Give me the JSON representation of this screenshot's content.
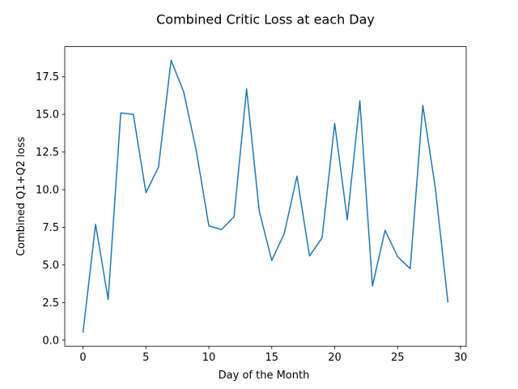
{
  "chart_data": {
    "type": "line",
    "title": "Combined Critic Loss at each Day",
    "xlabel": "Day of the Month",
    "ylabel": "Combined Q1+Q2 loss",
    "xlim": [
      -1.45,
      30.45
    ],
    "ylim": [
      -0.4,
      19.5
    ],
    "xticks": [
      0,
      5,
      10,
      15,
      20,
      25,
      30
    ],
    "xtick_labels": [
      "0",
      "5",
      "10",
      "15",
      "20",
      "25",
      "30"
    ],
    "yticks": [
      0.0,
      2.5,
      5.0,
      7.5,
      10.0,
      12.5,
      15.0,
      17.5
    ],
    "ytick_labels": [
      "0.0",
      "2.5",
      "5.0",
      "7.5",
      "10.0",
      "12.5",
      "15.0",
      "17.5"
    ],
    "grid": false,
    "line_color": "#1f77b4",
    "series": [
      {
        "x": [
          0,
          1,
          2,
          3,
          4,
          5,
          6,
          7,
          8,
          9,
          10,
          11,
          12,
          13,
          14,
          15,
          16,
          17,
          18,
          19,
          20,
          21,
          22,
          23,
          24,
          25,
          26,
          27,
          28,
          29
        ],
        "values": [
          0.5,
          7.7,
          2.7,
          15.1,
          15.0,
          9.8,
          11.5,
          18.6,
          16.5,
          12.6,
          7.6,
          7.35,
          8.2,
          16.7,
          8.6,
          5.3,
          7.1,
          10.9,
          5.6,
          6.8,
          14.4,
          8.0,
          15.9,
          3.6,
          7.3,
          5.55,
          4.75,
          15.6,
          10.1,
          2.5
        ]
      }
    ]
  }
}
